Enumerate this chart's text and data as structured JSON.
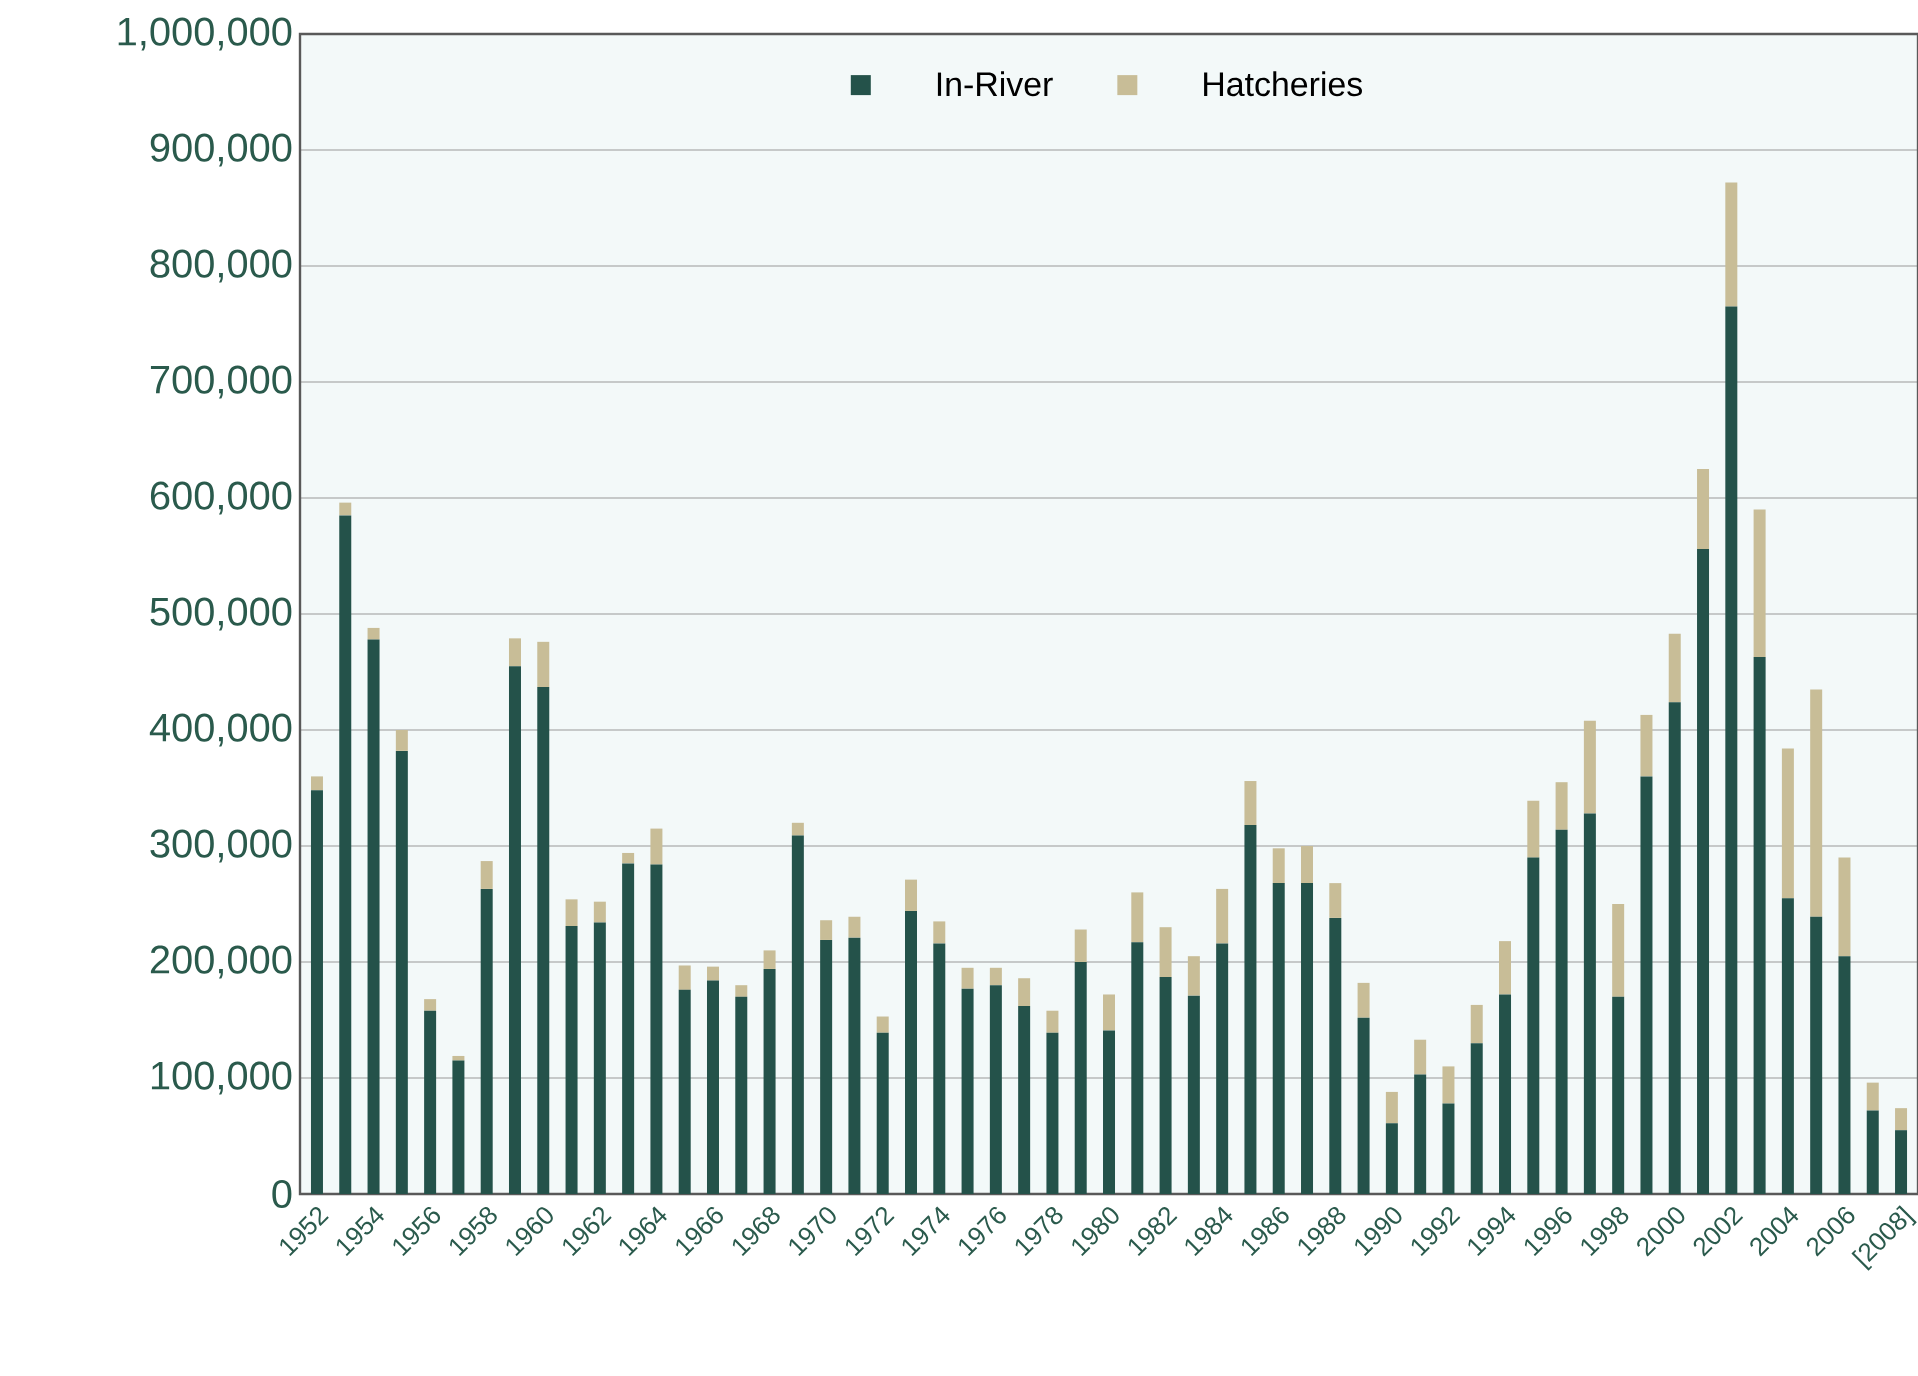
{
  "chart_data": {
    "type": "bar",
    "stacked": true,
    "categories": [
      "1952",
      null,
      "1954",
      null,
      "1956",
      null,
      "1958",
      null,
      "1960",
      null,
      "1962",
      null,
      "1964",
      null,
      "1966",
      null,
      "1968",
      null,
      "1970",
      null,
      "1972",
      null,
      "1974",
      null,
      "1976",
      null,
      "1978",
      null,
      "1980",
      null,
      "1982",
      null,
      "1984",
      null,
      "1986",
      null,
      "1988",
      null,
      "1990",
      null,
      "1992",
      null,
      "1994",
      null,
      "1996",
      null,
      "1998",
      null,
      "2000",
      null,
      "2002",
      null,
      "2004",
      null,
      "2006",
      null,
      "[2008]"
    ],
    "series": [
      {
        "name": "In-River",
        "color": "#24524a",
        "values": [
          348000,
          585000,
          478000,
          382000,
          158000,
          115000,
          263000,
          455000,
          437000,
          231000,
          234000,
          285000,
          284000,
          176000,
          184000,
          170000,
          194000,
          309000,
          219000,
          221000,
          139000,
          244000,
          216000,
          177000,
          180000,
          162000,
          139000,
          200000,
          141000,
          217000,
          187000,
          171000,
          216000,
          318000,
          268000,
          268000,
          238000,
          152000,
          61000,
          103000,
          78000,
          130000,
          172000,
          290000,
          314000,
          328000,
          170000,
          360000,
          424000,
          556000,
          765000,
          463000,
          255000,
          239000,
          205000,
          72000,
          55000
        ]
      },
      {
        "name": "Hatcheries",
        "color": "#c8bd97",
        "values": [
          12000,
          11000,
          10000,
          18000,
          10000,
          4000,
          24000,
          24000,
          39000,
          23000,
          18000,
          9000,
          31000,
          21000,
          12000,
          10000,
          16000,
          11000,
          17000,
          18000,
          14000,
          27000,
          19000,
          18000,
          15000,
          24000,
          19000,
          28000,
          31000,
          43000,
          43000,
          34000,
          47000,
          38000,
          30000,
          32000,
          30000,
          30000,
          27000,
          30000,
          32000,
          33000,
          46000,
          49000,
          41000,
          80000,
          80000,
          53000,
          59000,
          69000,
          107000,
          127000,
          129000,
          196000,
          85000,
          24000,
          19000
        ]
      }
    ],
    "ylim": [
      0,
      1000000
    ],
    "yticks": [
      {
        "value": 0,
        "label": "0"
      },
      {
        "value": 100000,
        "label": "100,000"
      },
      {
        "value": 200000,
        "label": "200,000"
      },
      {
        "value": 300000,
        "label": "300,000"
      },
      {
        "value": 400000,
        "label": "400,000"
      },
      {
        "value": 500000,
        "label": "500,000"
      },
      {
        "value": 600000,
        "label": "600,000"
      },
      {
        "value": 700000,
        "label": "700,000"
      },
      {
        "value": 800000,
        "label": "800,000"
      },
      {
        "value": 900000,
        "label": "900,000"
      },
      {
        "value": 1000000,
        "label": "1,000,000"
      }
    ],
    "grid": "y",
    "legend": "top"
  }
}
